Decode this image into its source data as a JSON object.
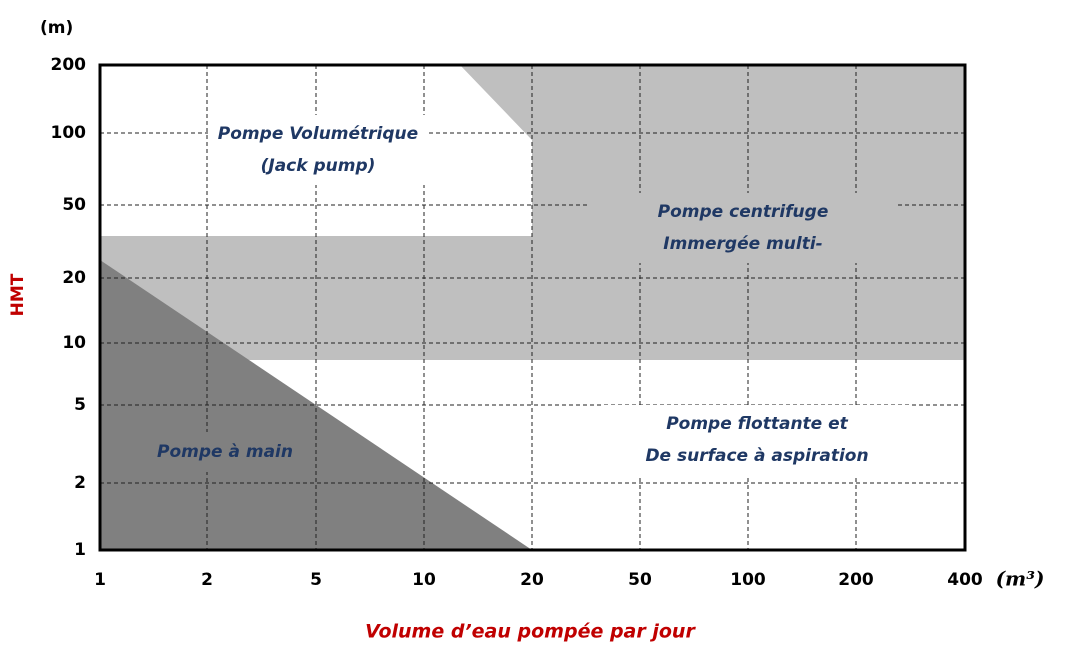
{
  "axes": {
    "y_unit": "(m)",
    "y_label": "HMT",
    "y_ticks": [
      "200",
      "100",
      "50",
      "20",
      "10",
      "5",
      "2",
      "1"
    ],
    "x_ticks": [
      "1",
      "2",
      "5",
      "10",
      "20",
      "50",
      "100",
      "200",
      "400"
    ],
    "x_unit": "(m³)",
    "x_label": "Volume d’eau pompée par jour"
  },
  "regions": [
    {
      "lines": [
        "Pompe Volumétrique",
        "(Jack pump)"
      ]
    },
    {
      "lines": [
        "Pompe centrifuge",
        "Immergée multi-"
      ]
    },
    {
      "lines": [
        "Pompe à main"
      ]
    },
    {
      "lines": [
        "Pompe flottante et",
        "De surface à aspiration"
      ]
    }
  ]
}
